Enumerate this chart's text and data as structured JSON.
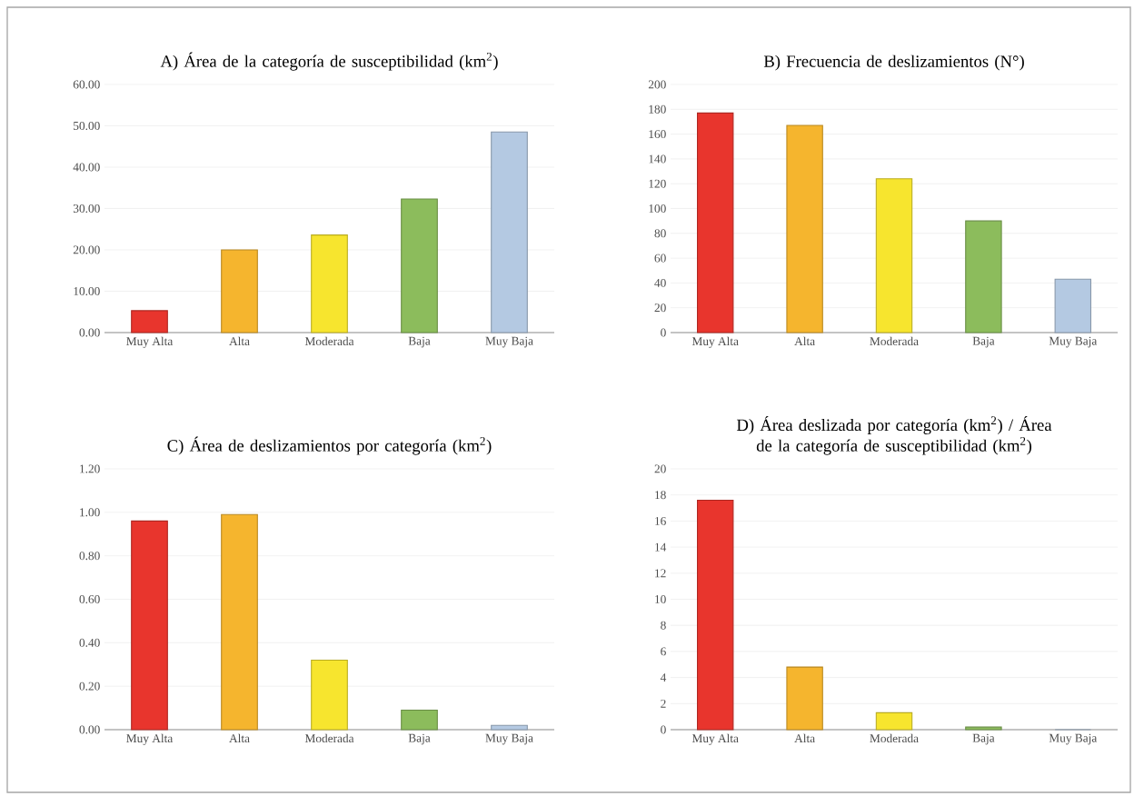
{
  "chart_data": [
    {
      "type": "bar",
      "title": "A) Área de la categoría de susceptibilidad (km$^{2}$)",
      "categories": [
        "Muy Alta",
        "Alta",
        "Moderada",
        "Baja",
        "Muy Baja"
      ],
      "values": [
        5.3,
        20,
        23.6,
        32.3,
        48.5
      ],
      "colors": [
        "#e8352d",
        "#f5b52e",
        "#f7e52e",
        "#8cbc5c",
        "#b4c9e2"
      ],
      "ylim": [
        0,
        60
      ],
      "yticks": [
        {
          "value": 0,
          "label": "0.00"
        },
        {
          "value": 10,
          "label": "10.00"
        },
        {
          "value": 20,
          "label": "20.00"
        },
        {
          "value": 30,
          "label": "30.00"
        },
        {
          "value": 40,
          "label": "40.00"
        },
        {
          "value": 50,
          "label": "50.00"
        },
        {
          "value": 60,
          "label": "60.00"
        }
      ],
      "grid": "y"
    },
    {
      "type": "bar",
      "title": "B) Frecuencia de deslizamientos (N°)",
      "categories": [
        "Muy Alta",
        "Alta",
        "Moderada",
        "Baja",
        "Muy Baja"
      ],
      "values": [
        177,
        167,
        124,
        90,
        43
      ],
      "colors": [
        "#e8352d",
        "#f5b52e",
        "#f7e52e",
        "#8cbc5c",
        "#b4c9e2"
      ],
      "ylim": [
        0,
        200
      ],
      "yticks": [
        0,
        20,
        40,
        60,
        80,
        100,
        120,
        140,
        160,
        180,
        200
      ],
      "grid": "y"
    },
    {
      "type": "bar",
      "title": "C) Área de deslizamientos por categoría (km$^{2}$)",
      "categories": [
        "Muy Alta",
        "Alta",
        "Moderada",
        "Baja",
        "Muy Baja"
      ],
      "values": [
        0.96,
        0.99,
        0.32,
        0.09,
        0.02
      ],
      "colors": [
        "#e8352d",
        "#f5b52e",
        "#f7e52e",
        "#8cbc5c",
        "#b4c9e2"
      ],
      "ylim": [
        0,
        1.2
      ],
      "yticks": [
        {
          "value": 0,
          "label": "0.00"
        },
        {
          "value": 0.2,
          "label": "0.20"
        },
        {
          "value": 0.4,
          "label": "0.40"
        },
        {
          "value": 0.6,
          "label": "0.60"
        },
        {
          "value": 0.8,
          "label": "0.80"
        },
        {
          "value": 1,
          "label": "1.00"
        },
        {
          "value": 1.2,
          "label": "1.20"
        }
      ],
      "grid": "y"
    },
    {
      "type": "bar",
      "title": "D) Área deslizada por categoría (km$^{2}$) /  Área de la categoría de susceptibilidad (km$^{2}$)",
      "categories": [
        "Muy Alta",
        "Alta",
        "Moderada",
        "Baja",
        "Muy Baja"
      ],
      "values": [
        17.6,
        4.8,
        1.3,
        0.2,
        0
      ],
      "colors": [
        "#e8352d",
        "#f5b52e",
        "#f7e52e",
        "#8cbc5c",
        "#b4c9e2"
      ],
      "ylim": [
        0,
        20
      ],
      "yticks": [
        0,
        2,
        4,
        6,
        8,
        10,
        12,
        14,
        16,
        18,
        20
      ],
      "grid": "y"
    }
  ]
}
